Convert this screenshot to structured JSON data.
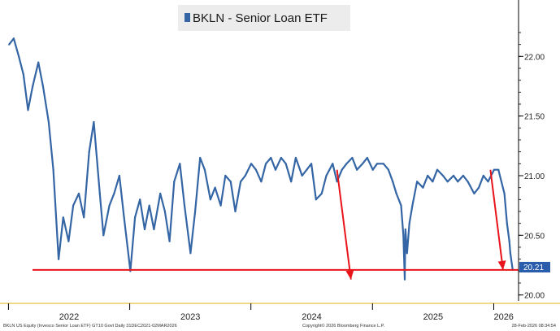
{
  "chart_data": {
    "type": "line",
    "title": "BKLN - Senior Loan ETF",
    "series": [
      {
        "name": "BKLN - Senior Loan ETF",
        "color": "#3465a4",
        "x": [
          "2022-01-03",
          "2022-01-17",
          "2022-02-01",
          "2022-02-15",
          "2022-03-01",
          "2022-03-15",
          "2022-04-01",
          "2022-04-15",
          "2022-05-02",
          "2022-05-16",
          "2022-06-01",
          "2022-06-15",
          "2022-07-01",
          "2022-07-15",
          "2022-08-01",
          "2022-08-16",
          "2022-09-01",
          "2022-09-15",
          "2022-10-03",
          "2022-10-14",
          "2022-11-01",
          "2022-11-15",
          "2022-12-01",
          "2022-12-15",
          "2023-01-03",
          "2023-01-17",
          "2023-02-01",
          "2023-02-15",
          "2023-03-01",
          "2023-03-15",
          "2023-04-03",
          "2023-04-17",
          "2023-05-01",
          "2023-05-15",
          "2023-06-01",
          "2023-06-15",
          "2023-07-03",
          "2023-07-17",
          "2023-08-01",
          "2023-08-15",
          "2023-09-01",
          "2023-09-15",
          "2023-10-02",
          "2023-10-16",
          "2023-11-01",
          "2023-11-15",
          "2023-12-01",
          "2023-12-15",
          "2024-01-02",
          "2024-01-16",
          "2024-02-01",
          "2024-02-15",
          "2024-03-01",
          "2024-03-15",
          "2024-04-01",
          "2024-04-15",
          "2024-05-01",
          "2024-05-15",
          "2024-06-03",
          "2024-06-17",
          "2024-07-01",
          "2024-07-15",
          "2024-08-01",
          "2024-08-15",
          "2024-09-03",
          "2024-09-16",
          "2024-10-01",
          "2024-10-15",
          "2024-11-01",
          "2024-11-15",
          "2024-12-02",
          "2024-12-16",
          "2025-01-02",
          "2025-01-15",
          "2025-02-03",
          "2025-02-18",
          "2025-03-03",
          "2025-03-14",
          "2025-03-28",
          "2025-04-04",
          "2025-04-08",
          "2025-04-10",
          "2025-04-15",
          "2025-04-22",
          "2025-05-01",
          "2025-05-15",
          "2025-06-02",
          "2025-06-16",
          "2025-07-01",
          "2025-07-15",
          "2025-08-01",
          "2025-08-15",
          "2025-09-02",
          "2025-09-15",
          "2025-10-01",
          "2025-10-15",
          "2025-11-03",
          "2025-11-17",
          "2025-12-01",
          "2025-12-15",
          "2026-01-02",
          "2026-01-15",
          "2026-02-02",
          "2026-02-10",
          "2026-02-17",
          "2026-02-20",
          "2026-02-27"
        ],
        "values": [
          22.1,
          22.15,
          22.0,
          21.85,
          21.55,
          21.75,
          21.95,
          21.75,
          21.45,
          21.05,
          20.3,
          20.65,
          20.45,
          20.75,
          20.85,
          20.65,
          21.2,
          21.45,
          20.85,
          20.5,
          20.75,
          20.85,
          21.0,
          20.65,
          20.2,
          20.65,
          20.8,
          20.55,
          20.75,
          20.55,
          20.85,
          20.7,
          20.45,
          20.95,
          21.1,
          20.75,
          20.35,
          20.7,
          21.15,
          21.05,
          20.8,
          20.9,
          20.75,
          21.0,
          20.95,
          20.7,
          20.95,
          21.0,
          21.1,
          21.05,
          20.95,
          21.1,
          21.15,
          21.05,
          21.15,
          21.1,
          20.95,
          21.15,
          21.0,
          21.05,
          21.1,
          20.8,
          20.85,
          21.0,
          21.1,
          20.95,
          21.05,
          21.1,
          21.15,
          21.05,
          21.1,
          21.15,
          21.05,
          21.1,
          21.1,
          21.05,
          20.95,
          20.85,
          20.75,
          20.5,
          20.13,
          20.55,
          20.35,
          20.6,
          20.75,
          20.95,
          20.9,
          21.0,
          20.95,
          21.05,
          21.0,
          20.95,
          21.0,
          20.95,
          21.0,
          20.95,
          20.85,
          20.9,
          21.0,
          20.95,
          21.05,
          21.05,
          20.85,
          20.6,
          20.45,
          20.35,
          20.21
        ]
      }
    ],
    "ylim": [
      19.95,
      22.35
    ],
    "yticks": [
      20.0,
      20.5,
      21.0,
      21.5,
      22.0
    ],
    "ytick_labels": [
      "20.00",
      "20.50",
      "21.00",
      "21.50",
      "22.00"
    ],
    "xlim": [
      "2021-12-31",
      "2026-03-02"
    ],
    "year_labels": [
      "2022",
      "2023",
      "2024",
      "2025",
      "2026"
    ],
    "support_level": 20.21,
    "last_value_label": "20.21",
    "arrows": [
      {
        "from": {
          "x": "2024-09-16",
          "y": 21.05
        },
        "to": {
          "x": "2024-10-28",
          "y": 20.13
        }
      },
      {
        "from": {
          "x": "2025-12-22",
          "y": 21.05
        },
        "to": {
          "x": "2026-01-29",
          "y": 20.21
        }
      }
    ],
    "y_axis_position": "right",
    "grid": false,
    "legend": "top-center",
    "colors": {
      "line": "#3465a4",
      "support_line": "#e8141a",
      "arrows": "#e8141a",
      "last_value_box": "#2a5dab",
      "legend_box": "#ececec",
      "axis": "#000000"
    }
  },
  "footer": {
    "left": "BKLN US Equity (Invesco Senior Loan ETF) GT10  Govt Daily 31DEC2021-02MAR2026",
    "center": "Copyright© 2026 Bloomberg Finance L.P.",
    "right": "28-Feb-2026 08:34:54"
  }
}
